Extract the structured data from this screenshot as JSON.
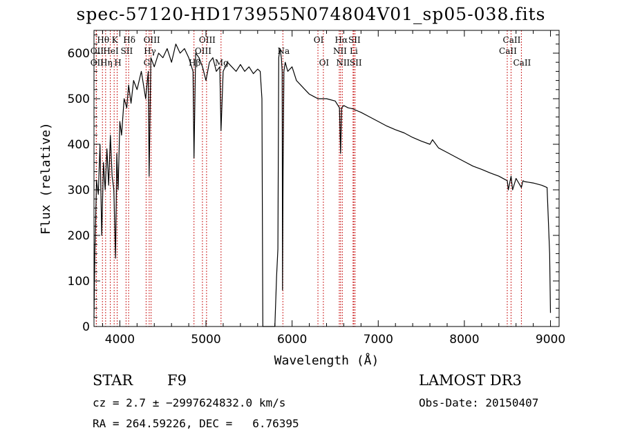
{
  "chart_data": {
    "type": "line",
    "title": "spec-57120-HD173955N074804V01_sp05-038.fits",
    "xlabel": "Wavelength (Å)",
    "ylabel": "Flux (relative)",
    "xlim": [
      3700,
      9100
    ],
    "ylim": [
      0,
      650
    ],
    "xticks": [
      4000,
      5000,
      6000,
      7000,
      8000,
      9000
    ],
    "yticks": [
      0,
      100,
      200,
      300,
      400,
      500,
      600
    ],
    "line_color": "#000000",
    "marker_color": "#cc2222",
    "series": [
      {
        "name": "flux",
        "x": [
          3700,
          3710,
          3730,
          3750,
          3770,
          3790,
          3810,
          3830,
          3850,
          3870,
          3890,
          3910,
          3930,
          3950,
          3965,
          3980,
          4000,
          4020,
          4050,
          4080,
          4102,
          4130,
          4160,
          4200,
          4250,
          4300,
          4330,
          4340,
          4360,
          4400,
          4450,
          4500,
          4550,
          4600,
          4650,
          4700,
          4750,
          4800,
          4850,
          4861,
          4880,
          4920,
          4960,
          5000,
          5040,
          5080,
          5120,
          5160,
          5175,
          5200,
          5250,
          5300,
          5350,
          5400,
          5450,
          5500,
          5550,
          5600,
          5630,
          5650,
          5660,
          5700,
          5800,
          5820,
          5835,
          5845,
          5860,
          5875,
          5885,
          5889,
          5895,
          5905,
          5920,
          5950,
          6000,
          6050,
          6100,
          6150,
          6200,
          6250,
          6300,
          6400,
          6500,
          6550,
          6563,
          6575,
          6600,
          6650,
          6700,
          6800,
          6900,
          7000,
          7100,
          7200,
          7300,
          7400,
          7500,
          7600,
          7630,
          7700,
          7800,
          7900,
          8000,
          8100,
          8200,
          8300,
          8400,
          8498,
          8510,
          8542,
          8560,
          8600,
          8662,
          8680,
          8700,
          8800,
          8900,
          8960,
          8990,
          9000
        ],
        "y": [
          20,
          160,
          320,
          290,
          400,
          200,
          360,
          300,
          390,
          310,
          420,
          330,
          300,
          150,
          380,
          300,
          450,
          420,
          500,
          480,
          530,
          490,
          540,
          520,
          560,
          500,
          560,
          330,
          590,
          570,
          600,
          590,
          610,
          580,
          620,
          600,
          610,
          590,
          560,
          370,
          600,
          590,
          570,
          540,
          580,
          590,
          560,
          570,
          430,
          560,
          580,
          570,
          560,
          575,
          560,
          570,
          555,
          565,
          560,
          500,
          0,
          0,
          0,
          110,
          170,
          590,
          610,
          590,
          560,
          80,
          340,
          560,
          580,
          560,
          570,
          540,
          530,
          520,
          510,
          505,
          500,
          500,
          495,
          480,
          380,
          480,
          485,
          480,
          478,
          470,
          460,
          450,
          440,
          432,
          425,
          415,
          407,
          400,
          410,
          392,
          382,
          372,
          362,
          352,
          345,
          337,
          330,
          320,
          300,
          330,
          300,
          325,
          305,
          320,
          318,
          315,
          310,
          305,
          160,
          30
        ]
      }
    ],
    "annotations": [
      {
        "label": "Hθ",
        "wavelength": 3798
      },
      {
        "label": "OII",
        "wavelength": 3727
      },
      {
        "label": "OII",
        "wavelength": 3727
      },
      {
        "label": "Hη",
        "wavelength": 3835
      },
      {
        "label": "HeI",
        "wavelength": 3889
      },
      {
        "label": "K",
        "wavelength": 3934
      },
      {
        "label": "H",
        "wavelength": 3969
      },
      {
        "label": "SII",
        "wavelength": 4072
      },
      {
        "label": "Hδ",
        "wavelength": 4102
      },
      {
        "label": "OIII",
        "wavelength": 4363
      },
      {
        "label": "Hγ",
        "wavelength": 4341
      },
      {
        "label": "G",
        "wavelength": 4305
      },
      {
        "label": "OIII",
        "wavelength": 5007
      },
      {
        "label": "OIII",
        "wavelength": 4959
      },
      {
        "label": "Hβ",
        "wavelength": 4861
      },
      {
        "label": "Mg",
        "wavelength": 5175
      },
      {
        "label": "Na",
        "wavelength": 5893
      },
      {
        "label": "OI",
        "wavelength": 6300
      },
      {
        "label": "OI",
        "wavelength": 6363
      },
      {
        "label": "Hα",
        "wavelength": 6563
      },
      {
        "label": "NII",
        "wavelength": 6548
      },
      {
        "label": "NII",
        "wavelength": 6583
      },
      {
        "label": "SII",
        "wavelength": 6716
      },
      {
        "label": "Li",
        "wavelength": 6708
      },
      {
        "label": "SII",
        "wavelength": 6731
      },
      {
        "label": "CaII",
        "wavelength": 8542
      },
      {
        "label": "CaII",
        "wavelength": 8498
      },
      {
        "label": "CaII",
        "wavelength": 8662
      }
    ]
  },
  "info": {
    "class": "STAR",
    "subclass": "F9",
    "survey": "LAMOST DR3",
    "cz": "cz = 2.7 ± −2997624832.0 km/s",
    "obs_date": "Obs-Date: 20150407",
    "radec": "RA = 264.59226, DEC =   6.76395"
  }
}
